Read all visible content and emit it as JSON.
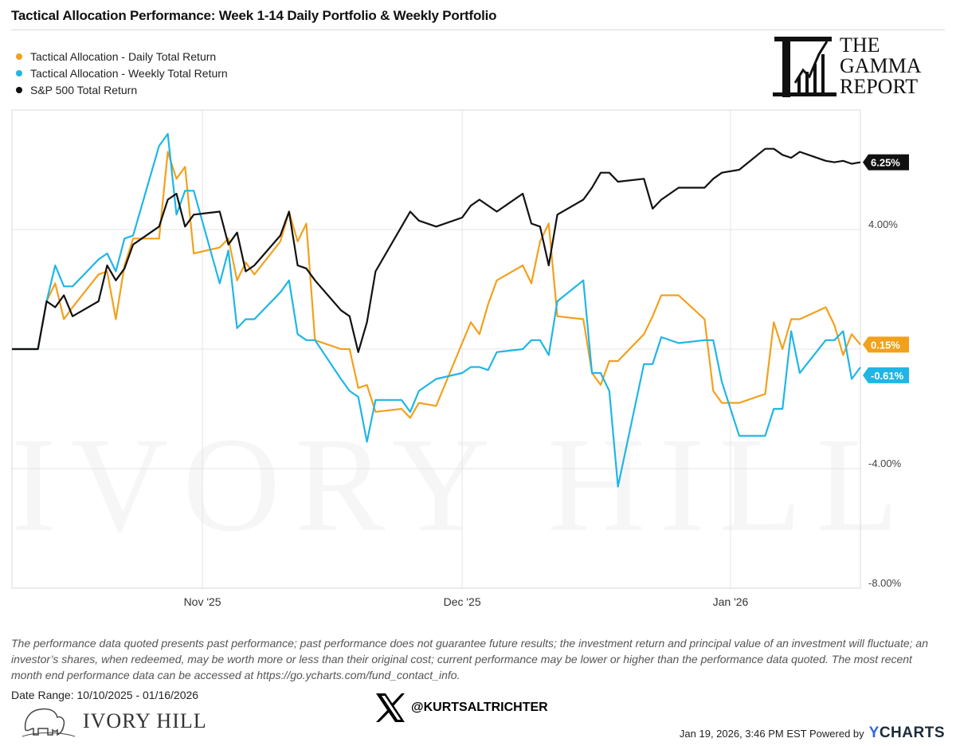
{
  "title": "Tactical Allocation Performance: Week 1-14 Daily Portfolio & Weekly Portfolio",
  "brand": {
    "gamma_lines": [
      "THE",
      "GAMMA",
      "REPORT"
    ],
    "watermark": "IVORY HILL",
    "ivory_hill": "IVORY HILL",
    "x_handle": "@KURTSALTRICHTER",
    "powered_by": "Jan 19, 2026, 3:46 PM EST Powered by",
    "ycharts_y": "Y",
    "ycharts_rest": "CHARTS"
  },
  "disclaimer": "The performance data quoted presents past performance; past performance does not guarantee future results; the investment return and principal value of an investment will fluctuate; an investor’s shares, when redeemed, may be worth more or less than their original cost; current performance may be lower or higher than the performance data quoted. The most recent month end performance data can be accessed at https://go.ycharts.com/fund_contact_info.",
  "date_range": "Date Range: 10/10/2025 - 01/16/2026",
  "colors": {
    "daily": "#f2a11c",
    "weekly": "#1fb6e6",
    "sp500": "#111111",
    "grid": "#e4e4e4"
  },
  "chart_data": {
    "type": "line",
    "ylabel": "",
    "ylim": [
      -8,
      8
    ],
    "yticks": [
      4,
      -4,
      -8
    ],
    "ytick_labels": [
      "4.00%",
      "-4.00%",
      "-8.00%"
    ],
    "xlim": [
      "2025-10-10",
      "2026-01-16"
    ],
    "xticks": [
      "2025-11-01",
      "2025-12-01",
      "2026-01-01"
    ],
    "xtick_labels": [
      "Nov '25",
      "Dec '25",
      "Jan '26"
    ],
    "legend": "top-left",
    "series": [
      {
        "name": "Tactical Allocation - Daily Total Return",
        "end_label": "0.15%",
        "x": [
          "2025-10-10",
          "2025-10-13",
          "2025-10-14",
          "2025-10-15",
          "2025-10-16",
          "2025-10-17",
          "2025-10-20",
          "2025-10-21",
          "2025-10-22",
          "2025-10-23",
          "2025-10-24",
          "2025-10-27",
          "2025-10-28",
          "2025-10-29",
          "2025-10-30",
          "2025-10-31",
          "2025-11-03",
          "2025-11-04",
          "2025-11-05",
          "2025-11-06",
          "2025-11-07",
          "2025-11-10",
          "2025-11-11",
          "2025-11-12",
          "2025-11-13",
          "2025-11-14",
          "2025-11-17",
          "2025-11-18",
          "2025-11-19",
          "2025-11-20",
          "2025-11-21",
          "2025-11-24",
          "2025-11-25",
          "2025-11-26",
          "2025-11-28",
          "2025-12-01",
          "2025-12-02",
          "2025-12-03",
          "2025-12-04",
          "2025-12-05",
          "2025-12-08",
          "2025-12-09",
          "2025-12-10",
          "2025-12-11",
          "2025-12-12",
          "2025-12-15",
          "2025-12-16",
          "2025-12-17",
          "2025-12-18",
          "2025-12-19",
          "2025-12-22",
          "2025-12-23",
          "2025-12-24",
          "2025-12-26",
          "2025-12-29",
          "2025-12-30",
          "2025-12-31",
          "2026-01-02",
          "2026-01-05",
          "2026-01-06",
          "2026-01-07",
          "2026-01-08",
          "2026-01-09",
          "2026-01-12",
          "2026-01-13",
          "2026-01-14",
          "2026-01-15",
          "2026-01-16"
        ],
        "values": [
          0.0,
          0.0,
          1.6,
          2.2,
          1.0,
          1.4,
          2.5,
          2.6,
          1.0,
          2.8,
          3.7,
          3.7,
          6.6,
          5.7,
          6.1,
          3.2,
          3.4,
          3.7,
          2.3,
          2.9,
          2.5,
          3.6,
          4.6,
          3.6,
          4.2,
          0.3,
          0.0,
          0.0,
          -1.3,
          -1.2,
          -2.1,
          -2.0,
          -2.3,
          -1.8,
          -1.9,
          0.2,
          0.9,
          0.5,
          1.5,
          2.3,
          2.8,
          2.2,
          3.6,
          4.2,
          1.1,
          1.0,
          -0.8,
          -1.2,
          -0.4,
          -0.4,
          0.5,
          1.1,
          1.8,
          1.8,
          1.0,
          -1.4,
          -1.8,
          -1.8,
          -1.5,
          0.9,
          0.0,
          1.0,
          1.0,
          1.4,
          0.8,
          -0.2,
          0.5,
          0.15
        ]
      },
      {
        "name": "Tactical Allocation - Weekly Total Return",
        "end_label": "-0.61%",
        "x": [
          "2025-10-10",
          "2025-10-13",
          "2025-10-14",
          "2025-10-15",
          "2025-10-16",
          "2025-10-17",
          "2025-10-20",
          "2025-10-21",
          "2025-10-22",
          "2025-10-23",
          "2025-10-24",
          "2025-10-27",
          "2025-10-28",
          "2025-10-29",
          "2025-10-30",
          "2025-10-31",
          "2025-11-03",
          "2025-11-04",
          "2025-11-05",
          "2025-11-06",
          "2025-11-07",
          "2025-11-10",
          "2025-11-11",
          "2025-11-12",
          "2025-11-13",
          "2025-11-14",
          "2025-11-17",
          "2025-11-18",
          "2025-11-19",
          "2025-11-20",
          "2025-11-21",
          "2025-11-24",
          "2025-11-25",
          "2025-11-26",
          "2025-11-28",
          "2025-12-01",
          "2025-12-02",
          "2025-12-03",
          "2025-12-04",
          "2025-12-05",
          "2025-12-08",
          "2025-12-09",
          "2025-12-10",
          "2025-12-11",
          "2025-12-12",
          "2025-12-15",
          "2025-12-16",
          "2025-12-17",
          "2025-12-18",
          "2025-12-19",
          "2025-12-22",
          "2025-12-23",
          "2025-12-24",
          "2025-12-26",
          "2025-12-29",
          "2025-12-30",
          "2025-12-31",
          "2026-01-02",
          "2026-01-05",
          "2026-01-06",
          "2026-01-07",
          "2026-01-08",
          "2026-01-09",
          "2026-01-12",
          "2026-01-13",
          "2026-01-14",
          "2026-01-15",
          "2026-01-16"
        ],
        "values": [
          0.0,
          0.0,
          1.6,
          2.8,
          2.1,
          2.1,
          3.0,
          3.2,
          2.6,
          3.7,
          3.8,
          6.8,
          7.2,
          4.5,
          5.3,
          5.3,
          2.2,
          3.3,
          0.7,
          1.0,
          1.0,
          1.9,
          2.3,
          0.5,
          0.3,
          0.3,
          -1.0,
          -1.4,
          -1.6,
          -3.1,
          -1.7,
          -1.7,
          -2.1,
          -1.4,
          -1.0,
          -0.8,
          -0.6,
          -0.6,
          -0.7,
          -0.1,
          0.0,
          0.3,
          0.3,
          -0.2,
          1.6,
          2.3,
          -0.8,
          -0.8,
          -1.4,
          -4.6,
          -0.5,
          -0.5,
          0.4,
          0.2,
          0.3,
          0.3,
          -1.1,
          -2.9,
          -2.9,
          -2.0,
          -2.0,
          0.6,
          -0.8,
          0.3,
          0.3,
          0.6,
          -1.0,
          -0.61
        ]
      },
      {
        "name": "S&P 500 Total Return",
        "end_label": "6.25%",
        "x": [
          "2025-10-10",
          "2025-10-13",
          "2025-10-14",
          "2025-10-15",
          "2025-10-16",
          "2025-10-17",
          "2025-10-20",
          "2025-10-21",
          "2025-10-22",
          "2025-10-23",
          "2025-10-24",
          "2025-10-27",
          "2025-10-28",
          "2025-10-29",
          "2025-10-30",
          "2025-10-31",
          "2025-11-03",
          "2025-11-04",
          "2025-11-05",
          "2025-11-06",
          "2025-11-07",
          "2025-11-10",
          "2025-11-11",
          "2025-11-12",
          "2025-11-13",
          "2025-11-14",
          "2025-11-17",
          "2025-11-18",
          "2025-11-19",
          "2025-11-20",
          "2025-11-21",
          "2025-11-24",
          "2025-11-25",
          "2025-11-26",
          "2025-11-28",
          "2025-12-01",
          "2025-12-02",
          "2025-12-03",
          "2025-12-04",
          "2025-12-05",
          "2025-12-08",
          "2025-12-09",
          "2025-12-10",
          "2025-12-11",
          "2025-12-12",
          "2025-12-15",
          "2025-12-16",
          "2025-12-17",
          "2025-12-18",
          "2025-12-19",
          "2025-12-22",
          "2025-12-23",
          "2025-12-24",
          "2025-12-26",
          "2025-12-29",
          "2025-12-30",
          "2025-12-31",
          "2026-01-02",
          "2026-01-05",
          "2026-01-06",
          "2026-01-07",
          "2026-01-08",
          "2026-01-09",
          "2026-01-12",
          "2026-01-13",
          "2026-01-14",
          "2026-01-15",
          "2026-01-16"
        ],
        "values": [
          0.0,
          0.0,
          1.6,
          1.4,
          1.8,
          1.1,
          1.6,
          2.8,
          2.3,
          2.7,
          3.5,
          4.1,
          5.0,
          5.2,
          4.1,
          4.5,
          4.6,
          3.5,
          3.9,
          2.6,
          2.8,
          3.8,
          4.6,
          2.8,
          2.7,
          2.3,
          1.3,
          1.1,
          -0.1,
          0.9,
          2.6,
          4.1,
          4.6,
          4.3,
          4.1,
          4.4,
          4.8,
          5.0,
          4.8,
          4.6,
          5.2,
          4.2,
          4.1,
          2.8,
          4.5,
          5.0,
          5.4,
          5.9,
          5.9,
          5.6,
          5.7,
          4.7,
          5.0,
          5.4,
          5.4,
          5.7,
          5.9,
          6.0,
          6.7,
          6.7,
          6.5,
          6.4,
          6.6,
          6.3,
          6.25,
          6.3,
          6.2,
          6.25
        ]
      }
    ]
  }
}
